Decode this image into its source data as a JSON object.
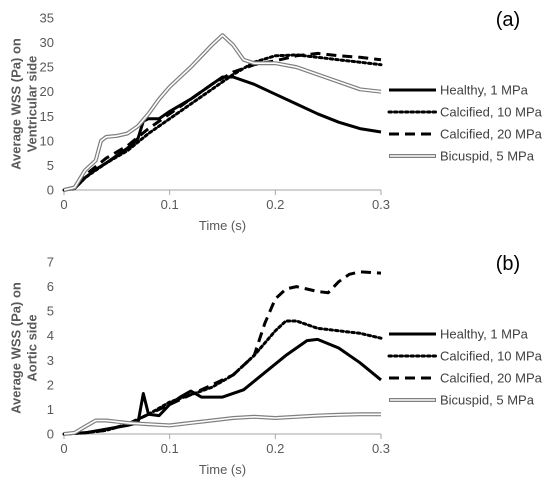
{
  "chart_data": [
    {
      "panel": "(a)",
      "type": "line",
      "xlabel": "Time (s)",
      "ylabel_lines": [
        "Average WSS (Pa) on",
        "Ventricular side"
      ],
      "xlim": [
        0,
        0.3
      ],
      "ylim": [
        0,
        35
      ],
      "x_ticks": [
        0,
        0.1,
        0.2,
        0.3
      ],
      "x_tick_labels": [
        "0",
        "0.1",
        "0.2",
        "0.3"
      ],
      "y_ticks": [
        0,
        5,
        10,
        15,
        20,
        25,
        30,
        35
      ],
      "legend_position": "right",
      "series": [
        {
          "name": "Healthy, 1 MPa",
          "style": "solid",
          "points": [
            [
              0,
              0
            ],
            [
              0.01,
              0.3
            ],
            [
              0.02,
              2.5
            ],
            [
              0.03,
              4.2
            ],
            [
              0.04,
              5.5
            ],
            [
              0.05,
              7
            ],
            [
              0.06,
              8.5
            ],
            [
              0.07,
              10.5
            ],
            [
              0.075,
              14
            ],
            [
              0.08,
              14.5
            ],
            [
              0.09,
              14.5
            ],
            [
              0.1,
              16
            ],
            [
              0.12,
              18.5
            ],
            [
              0.14,
              21.5
            ],
            [
              0.15,
              23
            ],
            [
              0.16,
              23
            ],
            [
              0.18,
              21.5
            ],
            [
              0.2,
              19.5
            ],
            [
              0.22,
              17.5
            ],
            [
              0.24,
              15.5
            ],
            [
              0.26,
              13.8
            ],
            [
              0.28,
              12.5
            ],
            [
              0.3,
              11.8
            ]
          ]
        },
        {
          "name": "Calcified, 10 MPa",
          "style": "dotted",
          "points": [
            [
              0,
              0
            ],
            [
              0.01,
              0.3
            ],
            [
              0.02,
              2.5
            ],
            [
              0.04,
              5.5
            ],
            [
              0.06,
              8
            ],
            [
              0.08,
              11.5
            ],
            [
              0.1,
              14.5
            ],
            [
              0.12,
              17.5
            ],
            [
              0.14,
              20.5
            ],
            [
              0.16,
              23.5
            ],
            [
              0.18,
              26
            ],
            [
              0.2,
              27.3
            ],
            [
              0.22,
              27.5
            ],
            [
              0.24,
              27
            ],
            [
              0.26,
              26.5
            ],
            [
              0.28,
              26
            ],
            [
              0.3,
              25.5
            ]
          ]
        },
        {
          "name": "Calcified, 20 MPa",
          "style": "dashed",
          "points": [
            [
              0,
              0
            ],
            [
              0.01,
              0.3
            ],
            [
              0.02,
              3
            ],
            [
              0.04,
              6.5
            ],
            [
              0.06,
              9
            ],
            [
              0.08,
              12.5
            ],
            [
              0.1,
              15.5
            ],
            [
              0.12,
              18.5
            ],
            [
              0.14,
              21.5
            ],
            [
              0.16,
              24
            ],
            [
              0.18,
              25.5
            ],
            [
              0.2,
              26.3
            ],
            [
              0.22,
              27.3
            ],
            [
              0.24,
              27.8
            ],
            [
              0.26,
              27.3
            ],
            [
              0.28,
              27
            ],
            [
              0.3,
              26.5
            ]
          ]
        },
        {
          "name": "Bicuspid, 5 MPa",
          "style": "double",
          "points": [
            [
              0,
              0
            ],
            [
              0.01,
              0.5
            ],
            [
              0.02,
              4
            ],
            [
              0.03,
              6
            ],
            [
              0.035,
              10
            ],
            [
              0.04,
              10.8
            ],
            [
              0.05,
              11
            ],
            [
              0.06,
              11.5
            ],
            [
              0.07,
              13
            ],
            [
              0.08,
              15.5
            ],
            [
              0.09,
              18.5
            ],
            [
              0.1,
              21
            ],
            [
              0.12,
              25
            ],
            [
              0.14,
              29.5
            ],
            [
              0.15,
              31.5
            ],
            [
              0.16,
              29.5
            ],
            [
              0.17,
              26.5
            ],
            [
              0.18,
              25.8
            ],
            [
              0.2,
              25.8
            ],
            [
              0.22,
              25
            ],
            [
              0.24,
              23.5
            ],
            [
              0.26,
              22
            ],
            [
              0.28,
              20.5
            ],
            [
              0.3,
              20
            ]
          ]
        }
      ]
    },
    {
      "panel": "(b)",
      "type": "line",
      "xlabel": "Time (s)",
      "ylabel_lines": [
        "Average WSS (Pa) on",
        "Aortic side"
      ],
      "xlim": [
        0,
        0.3
      ],
      "ylim": [
        0,
        7
      ],
      "x_ticks": [
        0,
        0.1,
        0.2,
        0.3
      ],
      "x_tick_labels": [
        "0",
        "0.1",
        "0.2",
        "0.3"
      ],
      "y_ticks": [
        0,
        1,
        2,
        3,
        4,
        5,
        6,
        7
      ],
      "legend_position": "right",
      "series": [
        {
          "name": "Healthy, 1 MPa",
          "style": "solid",
          "points": [
            [
              0,
              0
            ],
            [
              0.02,
              0.05
            ],
            [
              0.04,
              0.2
            ],
            [
              0.06,
              0.35
            ],
            [
              0.07,
              0.45
            ],
            [
              0.075,
              1.65
            ],
            [
              0.08,
              0.8
            ],
            [
              0.09,
              0.75
            ],
            [
              0.1,
              1.2
            ],
            [
              0.11,
              1.5
            ],
            [
              0.12,
              1.75
            ],
            [
              0.13,
              1.5
            ],
            [
              0.15,
              1.5
            ],
            [
              0.17,
              1.8
            ],
            [
              0.19,
              2.5
            ],
            [
              0.21,
              3.2
            ],
            [
              0.23,
              3.8
            ],
            [
              0.24,
              3.85
            ],
            [
              0.26,
              3.5
            ],
            [
              0.28,
              2.9
            ],
            [
              0.3,
              2.2
            ]
          ]
        },
        {
          "name": "Calcified, 10 MPa",
          "style": "dotted",
          "points": [
            [
              0,
              0
            ],
            [
              0.02,
              0.05
            ],
            [
              0.04,
              0.15
            ],
            [
              0.06,
              0.4
            ],
            [
              0.08,
              0.8
            ],
            [
              0.1,
              1.3
            ],
            [
              0.12,
              1.6
            ],
            [
              0.14,
              1.9
            ],
            [
              0.16,
              2.4
            ],
            [
              0.18,
              3.2
            ],
            [
              0.2,
              4.2
            ],
            [
              0.21,
              4.6
            ],
            [
              0.22,
              4.6
            ],
            [
              0.24,
              4.3
            ],
            [
              0.26,
              4.2
            ],
            [
              0.28,
              4.1
            ],
            [
              0.3,
              3.9
            ]
          ]
        },
        {
          "name": "Calcified, 20 MPa",
          "style": "dashed",
          "points": [
            [
              0,
              0
            ],
            [
              0.02,
              0.05
            ],
            [
              0.04,
              0.15
            ],
            [
              0.06,
              0.4
            ],
            [
              0.08,
              0.8
            ],
            [
              0.1,
              1.2
            ],
            [
              0.12,
              1.6
            ],
            [
              0.14,
              2
            ],
            [
              0.16,
              2.4
            ],
            [
              0.18,
              3.2
            ],
            [
              0.19,
              4.5
            ],
            [
              0.2,
              5.5
            ],
            [
              0.21,
              5.9
            ],
            [
              0.22,
              6
            ],
            [
              0.24,
              5.8
            ],
            [
              0.25,
              5.75
            ],
            [
              0.26,
              6.2
            ],
            [
              0.27,
              6.5
            ],
            [
              0.28,
              6.6
            ],
            [
              0.3,
              6.55
            ]
          ]
        },
        {
          "name": "Bicuspid, 5 MPa",
          "style": "double",
          "points": [
            [
              0,
              0
            ],
            [
              0.01,
              0.05
            ],
            [
              0.02,
              0.3
            ],
            [
              0.03,
              0.55
            ],
            [
              0.04,
              0.55
            ],
            [
              0.05,
              0.5
            ],
            [
              0.06,
              0.45
            ],
            [
              0.08,
              0.4
            ],
            [
              0.1,
              0.35
            ],
            [
              0.12,
              0.45
            ],
            [
              0.14,
              0.55
            ],
            [
              0.16,
              0.65
            ],
            [
              0.18,
              0.7
            ],
            [
              0.2,
              0.65
            ],
            [
              0.22,
              0.7
            ],
            [
              0.24,
              0.75
            ],
            [
              0.26,
              0.78
            ],
            [
              0.28,
              0.8
            ],
            [
              0.3,
              0.8
            ]
          ]
        }
      ]
    }
  ]
}
